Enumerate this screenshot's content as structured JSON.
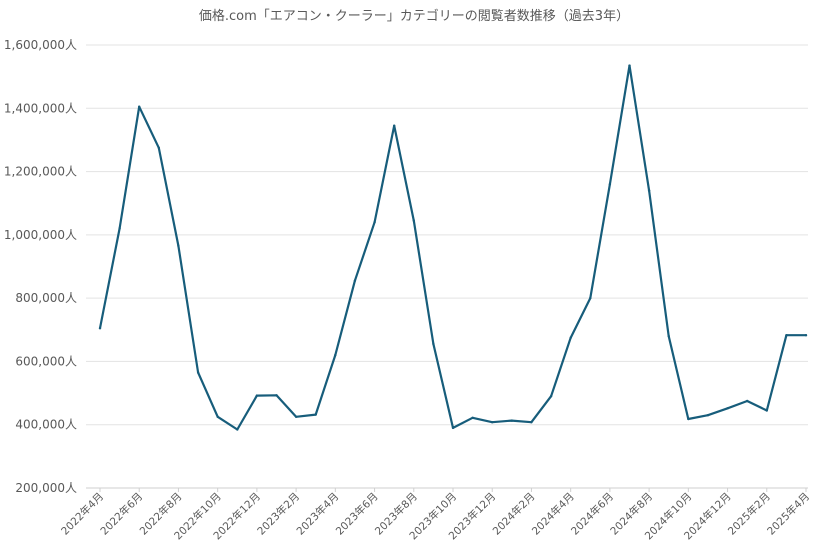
{
  "chart_data": {
    "type": "line",
    "title": "価格.com「エアコン・クーラー」カテゴリーの閲覧者数推移（過去3年）",
    "xlabel": "",
    "ylabel": "",
    "ylim": [
      200000,
      1600000
    ],
    "yticks": [
      200000,
      400000,
      600000,
      800000,
      1000000,
      1200000,
      1400000,
      1600000
    ],
    "ytick_labels": [
      "200,000人",
      "400,000人",
      "600,000人",
      "800,000人",
      "1,000,000人",
      "1,200,000人",
      "1,400,000人",
      "1,600,000人"
    ],
    "x": [
      "2022年4月",
      "2022年5月",
      "2022年6月",
      "2022年7月",
      "2022年8月",
      "2022年9月",
      "2022年10月",
      "2022年11月",
      "2022年12月",
      "2023年1月",
      "2023年2月",
      "2023年3月",
      "2023年4月",
      "2023年5月",
      "2023年6月",
      "2023年7月",
      "2023年8月",
      "2023年9月",
      "2023年10月",
      "2023年11月",
      "2023年12月",
      "2024年1月",
      "2024年2月",
      "2024年3月",
      "2024年4月",
      "2024年5月",
      "2024年6月",
      "2024年7月",
      "2024年8月",
      "2024年9月",
      "2024年10月",
      "2024年11月",
      "2024年12月",
      "2025年1月",
      "2025年2月",
      "2025年3月",
      "2025年4月"
    ],
    "xtick_labels": [
      "2022年4月",
      "2022年6月",
      "2022年8月",
      "2022年10月",
      "2022年12月",
      "2023年2月",
      "2023年4月",
      "2023年6月",
      "2023年8月",
      "2023年10月",
      "2023年12月",
      "2024年2月",
      "2024年4月",
      "2024年6月",
      "2024年8月",
      "2024年10月",
      "2024年12月",
      "2025年2月",
      "2025年4月"
    ],
    "series": [
      {
        "color": "#175d7b",
        "values": [
          705000,
          1020000,
          1405000,
          1275000,
          965000,
          565000,
          425000,
          385000,
          492000,
          493000,
          425000,
          432000,
          620000,
          855000,
          1040000,
          1345000,
          1045000,
          655000,
          390000,
          422000,
          408000,
          413000,
          408000,
          490000,
          675000,
          800000,
          1160000,
          1535000,
          1140000,
          680000,
          418000,
          430000,
          452000,
          475000,
          445000,
          683000,
          683000
        ]
      }
    ],
    "grid": true,
    "legend": "none"
  }
}
